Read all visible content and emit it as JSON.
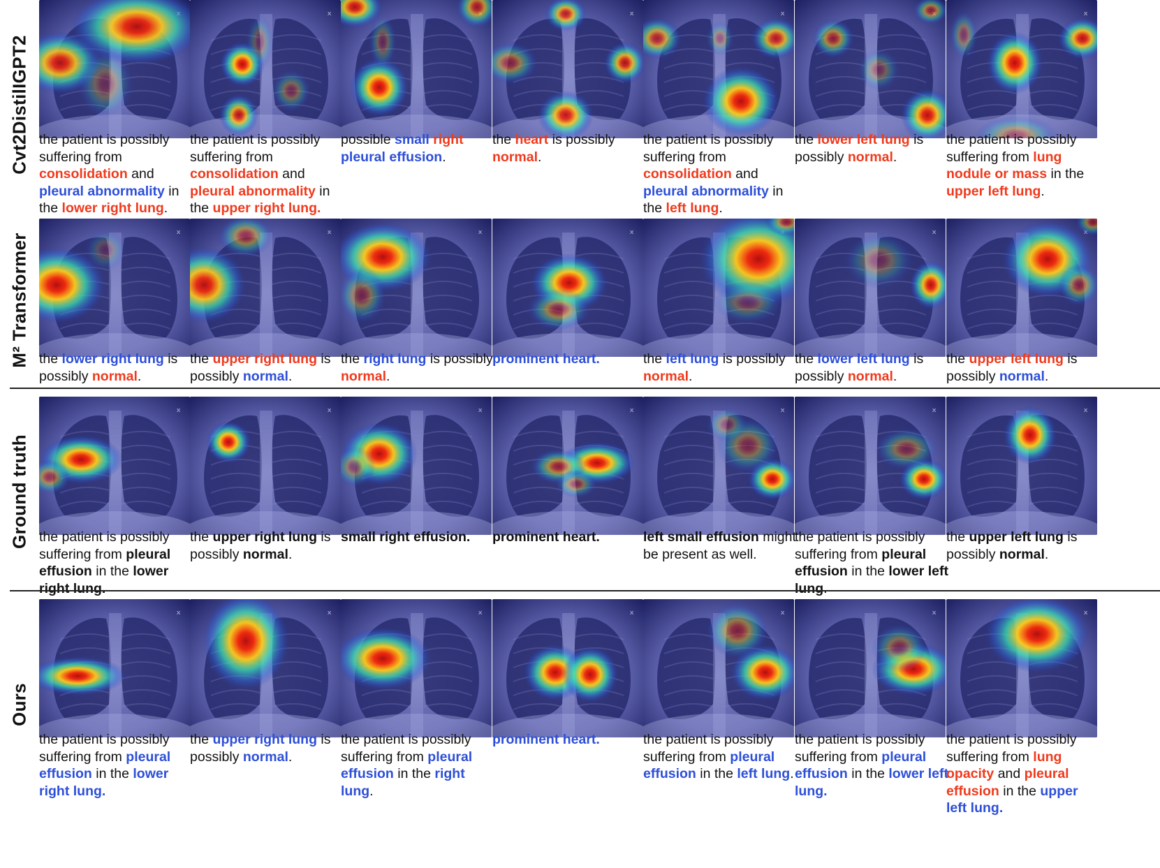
{
  "rows": [
    {
      "label": "Cvt2DistilIGPT2",
      "cells": [
        [
          [
            "t",
            "the patient is possibly suffering from "
          ],
          [
            "r",
            "consolidation"
          ],
          [
            "t",
            " and "
          ],
          [
            "b",
            "pleural abnormality"
          ],
          [
            "t",
            " in the "
          ],
          [
            "r",
            "lower right lung"
          ],
          [
            "t",
            "."
          ]
        ],
        [
          [
            "t",
            "the patient is possibly suffering from "
          ],
          [
            "r",
            "consolidation"
          ],
          [
            "t",
            " and "
          ],
          [
            "r",
            "pleural abnormality"
          ],
          [
            "t",
            " in the "
          ],
          [
            "r",
            "upper right lung."
          ]
        ],
        [
          [
            "t",
            "possible "
          ],
          [
            "b",
            "small"
          ],
          [
            "t",
            " "
          ],
          [
            "r",
            "right"
          ],
          [
            "t",
            " "
          ],
          [
            "b",
            "pleural effusion"
          ],
          [
            "t",
            "."
          ]
        ],
        [
          [
            "t",
            "the "
          ],
          [
            "r",
            "heart"
          ],
          [
            "t",
            " is possibly "
          ],
          [
            "r",
            "normal"
          ],
          [
            "t",
            "."
          ]
        ],
        [
          [
            "t",
            "the patient is possibly suffering from "
          ],
          [
            "r",
            "consolidation"
          ],
          [
            "t",
            " and "
          ],
          [
            "b",
            "pleural abnormality"
          ],
          [
            "t",
            " in the "
          ],
          [
            "r",
            "left lung"
          ],
          [
            "t",
            "."
          ]
        ],
        [
          [
            "t",
            "the "
          ],
          [
            "r",
            "lower left lung"
          ],
          [
            "t",
            " is possibly "
          ],
          [
            "r",
            "normal"
          ],
          [
            "t",
            "."
          ]
        ],
        [
          [
            "t",
            "the patient is possibly suffering from "
          ],
          [
            "r",
            "lung nodule or mass"
          ],
          [
            "t",
            " in the "
          ],
          [
            "r",
            "upper left lung"
          ],
          [
            "t",
            "."
          ]
        ]
      ]
    },
    {
      "label": "M² Transformer",
      "cells": [
        [
          [
            "t",
            "the "
          ],
          [
            "b",
            "lower right lung"
          ],
          [
            "t",
            " is possibly "
          ],
          [
            "r",
            "normal"
          ],
          [
            "t",
            "."
          ]
        ],
        [
          [
            "t",
            "the "
          ],
          [
            "r",
            "upper right lung"
          ],
          [
            "t",
            " is possibly "
          ],
          [
            "b",
            "normal"
          ],
          [
            "t",
            "."
          ]
        ],
        [
          [
            "t",
            "the "
          ],
          [
            "b",
            "right lung"
          ],
          [
            "t",
            " is possibly "
          ],
          [
            "r",
            "normal"
          ],
          [
            "t",
            "."
          ]
        ],
        [
          [
            "b",
            "prominent heart."
          ]
        ],
        [
          [
            "t",
            "the "
          ],
          [
            "b",
            "left lung"
          ],
          [
            "t",
            " is possibly "
          ],
          [
            "r",
            "normal"
          ],
          [
            "t",
            "."
          ]
        ],
        [
          [
            "t",
            "the "
          ],
          [
            "b",
            "lower left lung"
          ],
          [
            "t",
            " is possibly "
          ],
          [
            "r",
            "normal"
          ],
          [
            "t",
            "."
          ]
        ],
        [
          [
            "t",
            "the "
          ],
          [
            "r",
            "upper left lung"
          ],
          [
            "t",
            " is possibly "
          ],
          [
            "b",
            "normal"
          ],
          [
            "t",
            "."
          ]
        ]
      ]
    },
    {
      "label": "Ground truth",
      "cells": [
        [
          [
            "t",
            "the patient is possibly suffering from "
          ],
          [
            "k",
            "pleural effusion"
          ],
          [
            "t",
            " in the "
          ],
          [
            "k",
            "lower right lung."
          ]
        ],
        [
          [
            "t",
            "the "
          ],
          [
            "k",
            "upper right lung"
          ],
          [
            "t",
            " is possibly "
          ],
          [
            "k",
            "normal"
          ],
          [
            "t",
            "."
          ]
        ],
        [
          [
            "k",
            "small right effusion."
          ]
        ],
        [
          [
            "k",
            "prominent heart."
          ]
        ],
        [
          [
            "k",
            "left small effusion"
          ],
          [
            "t",
            " might be present as well."
          ]
        ],
        [
          [
            "t",
            "the patient is possibly suffering from "
          ],
          [
            "k",
            "pleural effusion"
          ],
          [
            "t",
            " in the "
          ],
          [
            "k",
            "lower left lung"
          ],
          [
            "t",
            "."
          ]
        ],
        [
          [
            "t",
            "the "
          ],
          [
            "k",
            "upper left lung"
          ],
          [
            "t",
            " is possibly "
          ],
          [
            "k",
            "normal"
          ],
          [
            "t",
            "."
          ]
        ]
      ]
    },
    {
      "label": "Ours",
      "cells": [
        [
          [
            "t",
            "the patient is possibly suffering from "
          ],
          [
            "b",
            "pleural effusion"
          ],
          [
            "t",
            " in the "
          ],
          [
            "b",
            "lower right lung."
          ]
        ],
        [
          [
            "t",
            "the "
          ],
          [
            "b",
            "upper right lung"
          ],
          [
            "t",
            " is possibly "
          ],
          [
            "b",
            "normal"
          ],
          [
            "t",
            "."
          ]
        ],
        [
          [
            "t",
            "the patient is possibly suffering from "
          ],
          [
            "b",
            "pleural effusion"
          ],
          [
            "t",
            " in the "
          ],
          [
            "b",
            "right lung"
          ],
          [
            "t",
            "."
          ]
        ],
        [
          [
            "b",
            "prominent heart."
          ]
        ],
        [
          [
            "t",
            "the patient is possibly suffering from "
          ],
          [
            "b",
            "pleural effusion"
          ],
          [
            "t",
            " in the "
          ],
          [
            "b",
            "left lung"
          ],
          [
            "t",
            "."
          ]
        ],
        [
          [
            "t",
            "the patient is possibly suffering from "
          ],
          [
            "b",
            "pleural effusion"
          ],
          [
            "t",
            " in the "
          ],
          [
            "b",
            "lower left lung."
          ]
        ],
        [
          [
            "t",
            "the patient is possibly suffering from "
          ],
          [
            "r",
            "lung opacity"
          ],
          [
            "t",
            " and "
          ],
          [
            "r",
            "pleural effusion"
          ],
          [
            "t",
            " in the "
          ],
          [
            "b",
            "upper left lung."
          ]
        ]
      ]
    }
  ],
  "colors": {
    "highlight_red": "#ef3a1d",
    "highlight_blue": "#2d4fd8"
  }
}
